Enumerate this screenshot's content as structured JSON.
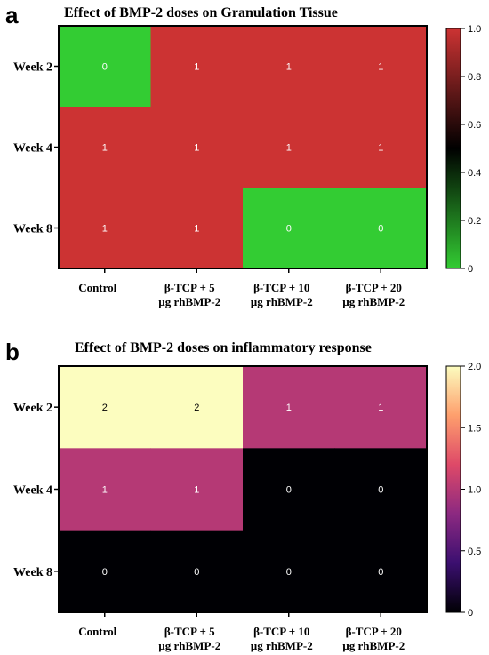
{
  "chart_data": [
    {
      "panel": "a",
      "type": "heatmap",
      "title": "Effect of BMP-2 doses on Granulation Tissue",
      "rows": [
        "Week 2",
        "Week 4",
        "Week 8"
      ],
      "columns": [
        "Control",
        "β-TCP + 5\nµg rhBMP-2",
        "β-TCP + 10\nµg rhBMP-2",
        "β-TCP + 20\nµg rhBMP-2"
      ],
      "values": [
        [
          0,
          1,
          1,
          1
        ],
        [
          1,
          1,
          1,
          1
        ],
        [
          1,
          1,
          0,
          0
        ]
      ],
      "colorbar": {
        "range": [
          0,
          1
        ],
        "ticks": [
          "1.0",
          "0.8",
          "0.6",
          "0.4",
          "0.2",
          "0"
        ],
        "colormap": [
          "#33cc33",
          "#000000",
          "#cc3333"
        ]
      }
    },
    {
      "panel": "b",
      "type": "heatmap",
      "title": "Effect of BMP-2 doses on inflammatory response",
      "rows": [
        "Week 2",
        "Week 4",
        "Week 8"
      ],
      "columns": [
        "Control",
        "β-TCP + 5\nµg rhBMP-2",
        "β-TCP + 10\nµg rhBMP-2",
        "β-TCP + 20\nµg rhBMP-2"
      ],
      "values": [
        [
          2,
          2,
          1,
          1
        ],
        [
          1,
          1,
          0,
          0
        ],
        [
          0,
          0,
          0,
          0
        ]
      ],
      "colorbar": {
        "range": [
          0,
          2
        ],
        "ticks": [
          "2.0",
          "1.5",
          "1.0",
          "0.5",
          "0"
        ],
        "colormap": [
          "#000004",
          "#3b0f70",
          "#8c2981",
          "#de4968",
          "#fe9f6d",
          "#fcfdbf"
        ]
      }
    }
  ]
}
